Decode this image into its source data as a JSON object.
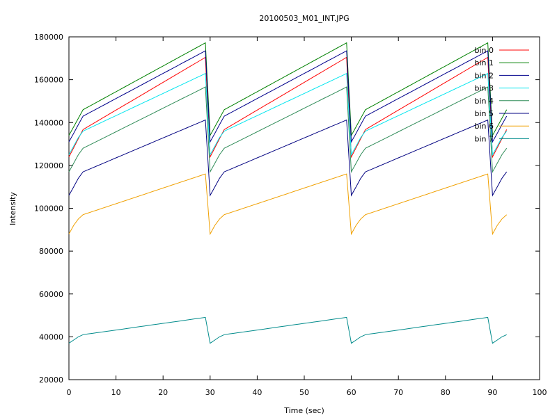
{
  "chart_data": {
    "type": "line",
    "title": "20100503_M01_INT.JPG",
    "xlabel": "Time (sec)",
    "ylabel": "Intensity",
    "xlim": [
      0,
      100
    ],
    "ylim": [
      20000,
      180000
    ],
    "x_ticks": [
      0,
      10,
      20,
      30,
      40,
      50,
      60,
      70,
      80,
      90,
      100
    ],
    "y_ticks": [
      20000,
      40000,
      60000,
      80000,
      100000,
      120000,
      140000,
      160000,
      180000
    ],
    "grid": false,
    "legend_position": "top-right",
    "x": [
      0,
      1,
      2,
      3,
      4,
      5,
      6,
      7,
      8,
      9,
      10,
      11,
      12,
      13,
      14,
      15,
      16,
      17,
      18,
      19,
      20,
      21,
      22,
      23,
      24,
      25,
      26,
      27,
      28,
      29,
      30,
      31,
      32,
      33,
      34,
      35,
      36,
      37,
      38,
      39,
      40,
      41,
      42,
      43,
      44,
      45,
      46,
      47,
      48,
      49,
      50,
      51,
      52,
      53,
      54,
      55,
      56,
      57,
      58,
      59,
      60,
      61,
      62,
      63,
      64,
      65,
      66,
      67,
      68,
      69,
      70,
      71,
      72,
      73,
      74,
      75,
      76,
      77,
      78,
      79,
      80,
      81,
      82,
      83,
      84,
      85,
      86,
      87,
      88,
      89,
      90,
      91,
      92,
      93
    ],
    "series": [
      {
        "name": "bin 0",
        "color": "#ff0000",
        "values": [
          124000,
          128250,
          132500,
          136750,
          138050,
          139340,
          140640,
          141930,
          143230,
          144520,
          145820,
          147110,
          148410,
          149700,
          151000,
          152300,
          153590,
          154890,
          156180,
          157480,
          158770,
          160070,
          161360,
          162660,
          163950,
          165250,
          166550,
          167840,
          169140,
          170430,
          124000,
          128250,
          132500,
          136750,
          138050,
          139340,
          140640,
          141930,
          143230,
          144520,
          145820,
          147110,
          148410,
          149700,
          151000,
          152300,
          153590,
          154890,
          156180,
          157480,
          158770,
          160070,
          161360,
          162660,
          163950,
          165250,
          166550,
          167840,
          169140,
          170430,
          124000,
          128250,
          132500,
          136750,
          138050,
          139340,
          140640,
          141930,
          143230,
          144520,
          145820,
          147110,
          148410,
          149700,
          151000,
          152300,
          153590,
          154890,
          156180,
          157480,
          158770,
          160070,
          161360,
          162660,
          163950,
          165250,
          166550,
          167840,
          169140,
          170430,
          124000,
          128250,
          132500,
          136750
        ]
      },
      {
        "name": "bin 1",
        "color": "#008000",
        "values": [
          134000,
          138000,
          142000,
          146000,
          147200,
          148400,
          149600,
          150800,
          152000,
          153200,
          154400,
          155600,
          156800,
          158000,
          159200,
          160400,
          161600,
          162800,
          164000,
          165200,
          166400,
          167600,
          168800,
          170000,
          171200,
          172400,
          173600,
          174800,
          176000,
          177200,
          134000,
          138000,
          142000,
          146000,
          147200,
          148400,
          149600,
          150800,
          152000,
          153200,
          154400,
          155600,
          156800,
          158000,
          159200,
          160400,
          161600,
          162800,
          164000,
          165200,
          166400,
          167600,
          168800,
          170000,
          171200,
          172400,
          173600,
          174800,
          176000,
          177200,
          134000,
          138000,
          142000,
          146000,
          147200,
          148400,
          149600,
          150800,
          152000,
          153200,
          154400,
          155600,
          156800,
          158000,
          159200,
          160400,
          161600,
          162800,
          164000,
          165200,
          166400,
          167600,
          168800,
          170000,
          171200,
          172400,
          173600,
          174800,
          176000,
          177200,
          134000,
          138000,
          142000,
          146000
        ]
      },
      {
        "name": "bin 2",
        "color": "#00008b",
        "values": [
          131000,
          135000,
          139000,
          143000,
          144170,
          145340,
          146520,
          147690,
          148860,
          150030,
          151210,
          152380,
          153550,
          154720,
          155900,
          157070,
          158240,
          159410,
          160590,
          161760,
          162930,
          164100,
          165280,
          166450,
          167620,
          168790,
          169970,
          171140,
          172310,
          173480,
          131000,
          135000,
          139000,
          143000,
          144170,
          145340,
          146520,
          147690,
          148860,
          150030,
          151210,
          152380,
          153550,
          154720,
          155900,
          157070,
          158240,
          159410,
          160590,
          161760,
          162930,
          164100,
          165280,
          166450,
          167620,
          168790,
          169970,
          171140,
          172310,
          173480,
          131000,
          135000,
          139000,
          143000,
          144170,
          145340,
          146520,
          147690,
          148860,
          150030,
          151210,
          152380,
          153550,
          154720,
          155900,
          157070,
          158240,
          159410,
          160590,
          161760,
          162930,
          164100,
          165280,
          166450,
          167620,
          168790,
          169970,
          171140,
          172310,
          173480,
          131000,
          135000,
          139000,
          143000
        ]
      },
      {
        "name": "bin 3",
        "color": "#00e5ee",
        "values": [
          125000,
          129000,
          133000,
          136000,
          137030,
          138070,
          139100,
          140140,
          141170,
          142210,
          143240,
          144280,
          145310,
          146340,
          147380,
          148410,
          149450,
          150480,
          151520,
          152550,
          153590,
          154620,
          155660,
          156690,
          157720,
          158760,
          159790,
          160830,
          161860,
          162900,
          125000,
          129000,
          133000,
          136000,
          137030,
          138070,
          139100,
          140140,
          141170,
          142210,
          143240,
          144280,
          145310,
          146340,
          147380,
          148410,
          149450,
          150480,
          151520,
          152550,
          153590,
          154620,
          155660,
          156690,
          157720,
          158760,
          159790,
          160830,
          161860,
          162900,
          125000,
          129000,
          133000,
          136000,
          137030,
          138070,
          139100,
          140140,
          141170,
          142210,
          143240,
          144280,
          145310,
          146340,
          147380,
          148410,
          149450,
          150480,
          151520,
          152550,
          153590,
          154620,
          155660,
          156690,
          157720,
          158760,
          159790,
          160830,
          161860,
          162900,
          125000,
          129000,
          133000,
          136000
        ]
      },
      {
        "name": "bin 4",
        "color": "#2e8b57",
        "values": [
          117000,
          121000,
          125000,
          128000,
          129100,
          130200,
          131300,
          132400,
          133500,
          134600,
          135700,
          136800,
          137900,
          139000,
          140100,
          141200,
          142300,
          143400,
          144500,
          145600,
          146700,
          147800,
          148900,
          150000,
          151100,
          152200,
          153300,
          154400,
          155500,
          156600,
          117000,
          121000,
          125000,
          128000,
          129100,
          130200,
          131300,
          132400,
          133500,
          134600,
          135700,
          136800,
          137900,
          139000,
          140100,
          141200,
          142300,
          143400,
          144500,
          145600,
          146700,
          147800,
          148900,
          150000,
          151100,
          152200,
          153300,
          154400,
          155500,
          156600,
          117000,
          121000,
          125000,
          128000,
          129100,
          130200,
          131300,
          132400,
          133500,
          134600,
          135700,
          136800,
          137900,
          139000,
          140100,
          141200,
          142300,
          143400,
          144500,
          145600,
          146700,
          147800,
          148900,
          150000,
          151100,
          152200,
          153300,
          154400,
          155500,
          156600,
          117000,
          121000,
          125000,
          128000
        ]
      },
      {
        "name": "bin 5",
        "color": "#000080",
        "values": [
          106000,
          110000,
          114000,
          117000,
          117930,
          118860,
          119790,
          120720,
          121660,
          122590,
          123520,
          124450,
          125380,
          126310,
          127240,
          128170,
          129100,
          130030,
          130970,
          131900,
          132830,
          133760,
          134690,
          135620,
          136550,
          137480,
          138410,
          139340,
          140280,
          141210,
          106000,
          110000,
          114000,
          117000,
          117930,
          118860,
          119790,
          120720,
          121660,
          122590,
          123520,
          124450,
          125380,
          126310,
          127240,
          128170,
          129100,
          130030,
          130970,
          131900,
          132830,
          133760,
          134690,
          135620,
          136550,
          137480,
          138410,
          139340,
          140280,
          141210,
          106000,
          110000,
          114000,
          117000,
          117930,
          118860,
          119790,
          120720,
          121660,
          122590,
          123520,
          124450,
          125380,
          126310,
          127240,
          128170,
          129100,
          130030,
          130970,
          131900,
          132830,
          133760,
          134690,
          135620,
          136550,
          137480,
          138410,
          139340,
          140280,
          141210,
          106000,
          110000,
          114000,
          117000
        ]
      },
      {
        "name": "bin 6",
        "color": "#f0a000",
        "values": [
          88000,
          92000,
          95000,
          97000,
          97730,
          98460,
          99190,
          99920,
          100660,
          101390,
          102120,
          102850,
          103580,
          104310,
          105040,
          105770,
          106500,
          107230,
          107970,
          108700,
          109430,
          110160,
          110890,
          111620,
          112350,
          113080,
          113810,
          114540,
          115280,
          116010,
          88000,
          92000,
          95000,
          97000,
          97730,
          98460,
          99190,
          99920,
          100660,
          101390,
          102120,
          102850,
          103580,
          104310,
          105040,
          105770,
          106500,
          107230,
          107970,
          108700,
          109430,
          110160,
          110890,
          111620,
          112350,
          113080,
          113810,
          114540,
          115280,
          116010,
          88000,
          92000,
          95000,
          97000,
          97730,
          98460,
          99190,
          99920,
          100660,
          101390,
          102120,
          102850,
          103580,
          104310,
          105040,
          105770,
          106500,
          107230,
          107970,
          108700,
          109430,
          110160,
          110890,
          111620,
          112350,
          113080,
          113810,
          114540,
          115280,
          116010,
          88000,
          92000,
          95000,
          97000
        ]
      },
      {
        "name": "bin 7",
        "color": "#008b8b",
        "values": [
          37000,
          38500,
          40000,
          41000,
          41310,
          41620,
          41930,
          42240,
          42550,
          42860,
          43170,
          43480,
          43790,
          44100,
          44410,
          44720,
          45030,
          45340,
          45660,
          45970,
          46280,
          46590,
          46900,
          47210,
          47520,
          47830,
          48140,
          48450,
          48760,
          49070,
          37000,
          38500,
          40000,
          41000,
          41310,
          41620,
          41930,
          42240,
          42550,
          42860,
          43170,
          43480,
          43790,
          44100,
          44410,
          44720,
          45030,
          45340,
          45660,
          45970,
          46280,
          46590,
          46900,
          47210,
          47520,
          47830,
          48140,
          48450,
          48760,
          49070,
          37000,
          38500,
          40000,
          41000,
          41310,
          41620,
          41930,
          42240,
          42550,
          42860,
          43170,
          43480,
          43790,
          44100,
          44410,
          44720,
          45030,
          45340,
          45660,
          45970,
          46280,
          46590,
          46900,
          47210,
          47520,
          47830,
          48140,
          48450,
          48760,
          49070,
          37000,
          38500,
          40000,
          41000
        ]
      }
    ]
  }
}
